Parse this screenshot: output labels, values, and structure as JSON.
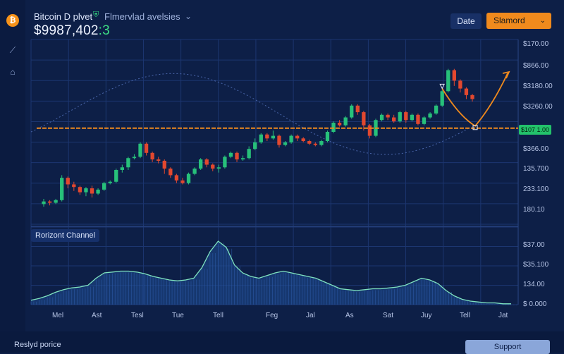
{
  "header": {
    "coin_icon": "bitcoin-icon",
    "coin_glyph": "₿",
    "title": "Bitcoin D plvet",
    "shield_icon": "shield-icon",
    "subtitle": "Flmervlad avelsies",
    "price_main": "$9987,402",
    "price_highlight": ":3",
    "date_button": "Date",
    "standard_select": "Slamord"
  },
  "sidebar": {
    "icons": [
      {
        "name": "draw-tool-icon",
        "glyph": "⟋"
      },
      {
        "name": "home-icon",
        "glyph": "⌂"
      }
    ]
  },
  "colors": {
    "background": "#0d1f47",
    "up": "#27c07a",
    "down": "#e2482f",
    "accent": "#f08a1d",
    "area_line": "#7fe3c0",
    "price_tag": "#23c26b"
  },
  "chart_data": [
    {
      "type": "candlestick",
      "y_axis_labels": [
        "$170.00",
        "$866.00",
        "$3180.00",
        "$3260.00",
        "$366.00",
        "135.700",
        "233.100",
        "180.10"
      ],
      "current_price_label": "$107 1.00",
      "current_price_line_level": 0.52,
      "indicator": "orange-trend-arrow",
      "candles": [
        [
          10,
          12,
          8,
          14
        ],
        [
          12,
          11,
          9,
          13
        ],
        [
          11,
          13,
          10,
          14
        ],
        [
          13,
          30,
          12,
          32
        ],
        [
          30,
          25,
          22,
          31
        ],
        [
          25,
          23,
          20,
          27
        ],
        [
          23,
          19,
          17,
          24
        ],
        [
          19,
          22,
          16,
          23
        ],
        [
          22,
          18,
          15,
          24
        ],
        [
          18,
          21,
          17,
          22
        ],
        [
          21,
          26,
          20,
          27
        ],
        [
          26,
          27,
          25,
          28
        ],
        [
          27,
          36,
          26,
          37
        ],
        [
          36,
          38,
          34,
          40
        ],
        [
          38,
          45,
          36,
          46
        ],
        [
          45,
          46,
          44,
          48
        ],
        [
          46,
          56,
          45,
          57
        ],
        [
          56,
          49,
          47,
          57
        ],
        [
          49,
          44,
          42,
          50
        ],
        [
          44,
          43,
          41,
          46
        ],
        [
          43,
          37,
          33,
          44
        ],
        [
          37,
          32,
          30,
          38
        ],
        [
          32,
          28,
          26,
          33
        ],
        [
          28,
          26,
          25,
          30
        ],
        [
          26,
          33,
          25,
          34
        ],
        [
          33,
          37,
          32,
          38
        ],
        [
          37,
          44,
          36,
          45
        ],
        [
          44,
          40,
          38,
          45
        ],
        [
          40,
          37,
          35,
          41
        ],
        [
          37,
          38,
          34,
          40
        ],
        [
          38,
          46,
          37,
          47
        ],
        [
          46,
          49,
          45,
          50
        ],
        [
          49,
          44,
          42,
          50
        ],
        [
          44,
          45,
          43,
          47
        ],
        [
          45,
          52,
          44,
          54
        ],
        [
          52,
          57,
          51,
          60
        ],
        [
          57,
          63,
          56,
          64
        ],
        [
          63,
          60,
          58,
          64
        ],
        [
          60,
          62,
          59,
          66
        ],
        [
          62,
          55,
          53,
          63
        ],
        [
          55,
          57,
          54,
          58
        ],
        [
          57,
          62,
          56,
          63
        ],
        [
          62,
          60,
          58,
          63
        ],
        [
          60,
          58,
          57,
          61
        ],
        [
          58,
          56,
          55,
          59
        ],
        [
          56,
          55,
          54,
          57
        ],
        [
          55,
          58,
          54,
          59
        ],
        [
          58,
          65,
          57,
          66
        ],
        [
          65,
          72,
          64,
          73
        ],
        [
          72,
          70,
          69,
          74
        ],
        [
          70,
          76,
          69,
          77
        ],
        [
          76,
          85,
          75,
          86
        ],
        [
          85,
          80,
          78,
          86
        ],
        [
          80,
          70,
          66,
          81
        ],
        [
          70,
          62,
          60,
          71
        ],
        [
          62,
          74,
          61,
          75
        ],
        [
          74,
          78,
          73,
          79
        ],
        [
          78,
          76,
          74,
          79
        ],
        [
          76,
          73,
          72,
          78
        ],
        [
          73,
          80,
          72,
          81
        ],
        [
          80,
          74,
          72,
          81
        ],
        [
          74,
          78,
          73,
          79
        ],
        [
          78,
          71,
          70,
          79
        ],
        [
          71,
          76,
          70,
          77
        ],
        [
          76,
          79,
          75,
          80
        ],
        [
          79,
          85,
          78,
          86
        ],
        [
          85,
          96,
          84,
          97
        ],
        [
          96,
          112,
          95,
          113
        ],
        [
          112,
          104,
          100,
          113
        ],
        [
          104,
          98,
          95,
          105
        ],
        [
          98,
          93,
          90,
          99
        ],
        [
          93,
          90,
          88,
          94
        ]
      ]
    },
    {
      "type": "area",
      "title": "Rorizont Channel",
      "y_axis_labels": [
        "$37.00",
        "$35.100",
        "134.00",
        "$ 0.000"
      ],
      "x_labels": [
        "Mel",
        "Ast",
        "Tesl",
        "Tue",
        "Tell",
        "Feg",
        "Jal",
        "As",
        "Sat",
        "Juy",
        "Tell",
        "Jat"
      ],
      "values": [
        5,
        7,
        10,
        14,
        17,
        19,
        20,
        22,
        30,
        36,
        37,
        38,
        38,
        37,
        35,
        32,
        30,
        28,
        27,
        28,
        30,
        42,
        60,
        72,
        65,
        45,
        36,
        32,
        30,
        33,
        36,
        38,
        36,
        34,
        32,
        30,
        26,
        22,
        18,
        17,
        16,
        17,
        18,
        18,
        19,
        20,
        22,
        26,
        30,
        28,
        24,
        16,
        10,
        6,
        4,
        3,
        2,
        2,
        1,
        1
      ]
    }
  ],
  "footer": {
    "text": "Reslyd porice",
    "support_button": "Support"
  }
}
